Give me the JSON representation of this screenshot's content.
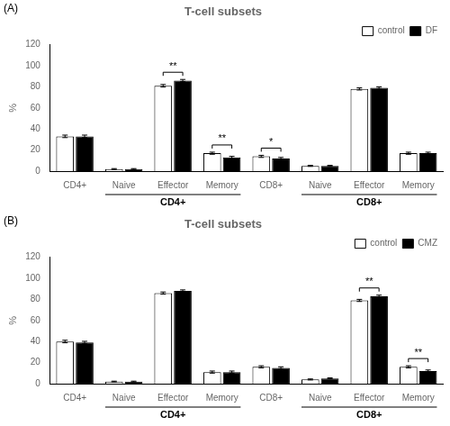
{
  "chart_data": [
    {
      "type": "bar",
      "title": "T-cell subsets",
      "panel_label": "(A)",
      "ylabel": "%",
      "categories": [
        "CD4+",
        "Naive",
        "Effector",
        "Memory",
        "CD8+",
        "Naive",
        "Effector",
        "Memory"
      ],
      "series": [
        {
          "name": "control",
          "color": "white",
          "values": [
            33,
            2,
            81,
            17,
            14,
            5,
            78,
            17
          ],
          "errors": [
            1.2,
            0.4,
            1.2,
            1.0,
            1.0,
            0.5,
            1.0,
            1.0
          ]
        },
        {
          "name": "DF",
          "color": "black",
          "values": [
            33,
            2,
            86,
            13,
            12,
            5,
            79,
            17
          ],
          "errors": [
            1.2,
            0.4,
            1.0,
            1.0,
            1.0,
            0.5,
            1.0,
            1.0
          ]
        }
      ],
      "ylim": [
        0,
        120
      ],
      "yticks": [
        0,
        20,
        40,
        60,
        80,
        100,
        120
      ],
      "grid": false,
      "legend": "upper right",
      "annotations": [
        {
          "text": "**",
          "x": 2
        },
        {
          "text": "**",
          "x": 3
        },
        {
          "text": "*",
          "x": 4
        }
      ],
      "group_labels": [
        {
          "text": "CD4+",
          "categories": [
            1,
            3
          ]
        },
        {
          "text": "CD8+",
          "categories": [
            5,
            7
          ]
        }
      ]
    },
    {
      "type": "bar",
      "title": "T-cell subsets",
      "panel_label": "(B)",
      "ylabel": "%",
      "categories": [
        "CD4+",
        "Naive",
        "Effector",
        "Memory",
        "CD8+",
        "Naive",
        "Effector",
        "Memory"
      ],
      "series": [
        {
          "name": "control",
          "color": "white",
          "values": [
            40,
            2,
            86,
            11,
            16,
            4,
            79,
            16
          ],
          "errors": [
            1.2,
            0.4,
            1.0,
            1.0,
            1.0,
            0.5,
            1.0,
            1.0
          ]
        },
        {
          "name": "CMZ",
          "color": "black",
          "values": [
            39,
            2,
            88,
            11,
            15,
            5,
            83,
            12
          ],
          "errors": [
            1.2,
            0.4,
            1.0,
            1.0,
            1.0,
            0.5,
            1.0,
            1.0
          ]
        }
      ],
      "ylim": [
        0,
        120
      ],
      "yticks": [
        0,
        20,
        40,
        60,
        80,
        100,
        120
      ],
      "grid": false,
      "legend": "upper right",
      "annotations": [
        {
          "text": "**",
          "x": 6
        },
        {
          "text": "**",
          "x": 7
        }
      ],
      "group_labels": [
        {
          "text": "CD4+",
          "categories": [
            1,
            3
          ]
        },
        {
          "text": "CD8+",
          "categories": [
            5,
            7
          ]
        }
      ]
    }
  ]
}
